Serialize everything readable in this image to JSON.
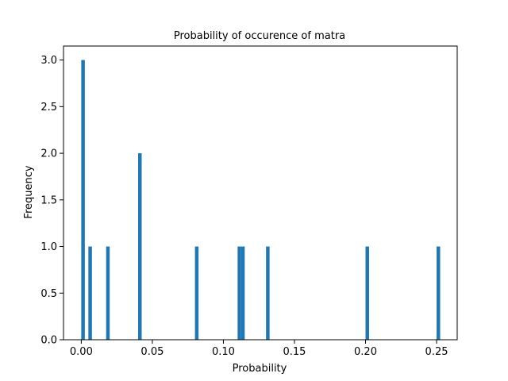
{
  "chart_data": {
    "type": "bar",
    "title": "Probability of occurence of matra",
    "xlabel": "Probability",
    "ylabel": "Frequency",
    "xlim": [
      -0.0125,
      0.2645
    ],
    "ylim": [
      0,
      3.15
    ],
    "x_ticks": [
      {
        "value": 0.0,
        "label": "0.00"
      },
      {
        "value": 0.05,
        "label": "0.05"
      },
      {
        "value": 0.1,
        "label": "0.10"
      },
      {
        "value": 0.15,
        "label": "0.15"
      },
      {
        "value": 0.2,
        "label": "0.20"
      },
      {
        "value": 0.25,
        "label": "0.25"
      }
    ],
    "y_ticks": [
      {
        "value": 0.0,
        "label": "0.0"
      },
      {
        "value": 0.5,
        "label": "0.5"
      },
      {
        "value": 1.0,
        "label": "1.0"
      },
      {
        "value": 1.5,
        "label": "1.5"
      },
      {
        "value": 2.0,
        "label": "2.0"
      },
      {
        "value": 2.5,
        "label": "2.5"
      },
      {
        "value": 3.0,
        "label": "3.0"
      }
    ],
    "bin_width": 0.0025,
    "bars": [
      {
        "x": 0.0,
        "value": 3
      },
      {
        "x": 0.005,
        "value": 1
      },
      {
        "x": 0.0175,
        "value": 1
      },
      {
        "x": 0.04,
        "value": 2
      },
      {
        "x": 0.08,
        "value": 1
      },
      {
        "x": 0.11,
        "value": 1
      },
      {
        "x": 0.1125,
        "value": 1
      },
      {
        "x": 0.13,
        "value": 1
      },
      {
        "x": 0.2,
        "value": 1
      },
      {
        "x": 0.25,
        "value": 1
      }
    ],
    "grid": false,
    "colors": {
      "bar": "#1f77b4",
      "axis": "#000000",
      "background": "#ffffff"
    }
  }
}
